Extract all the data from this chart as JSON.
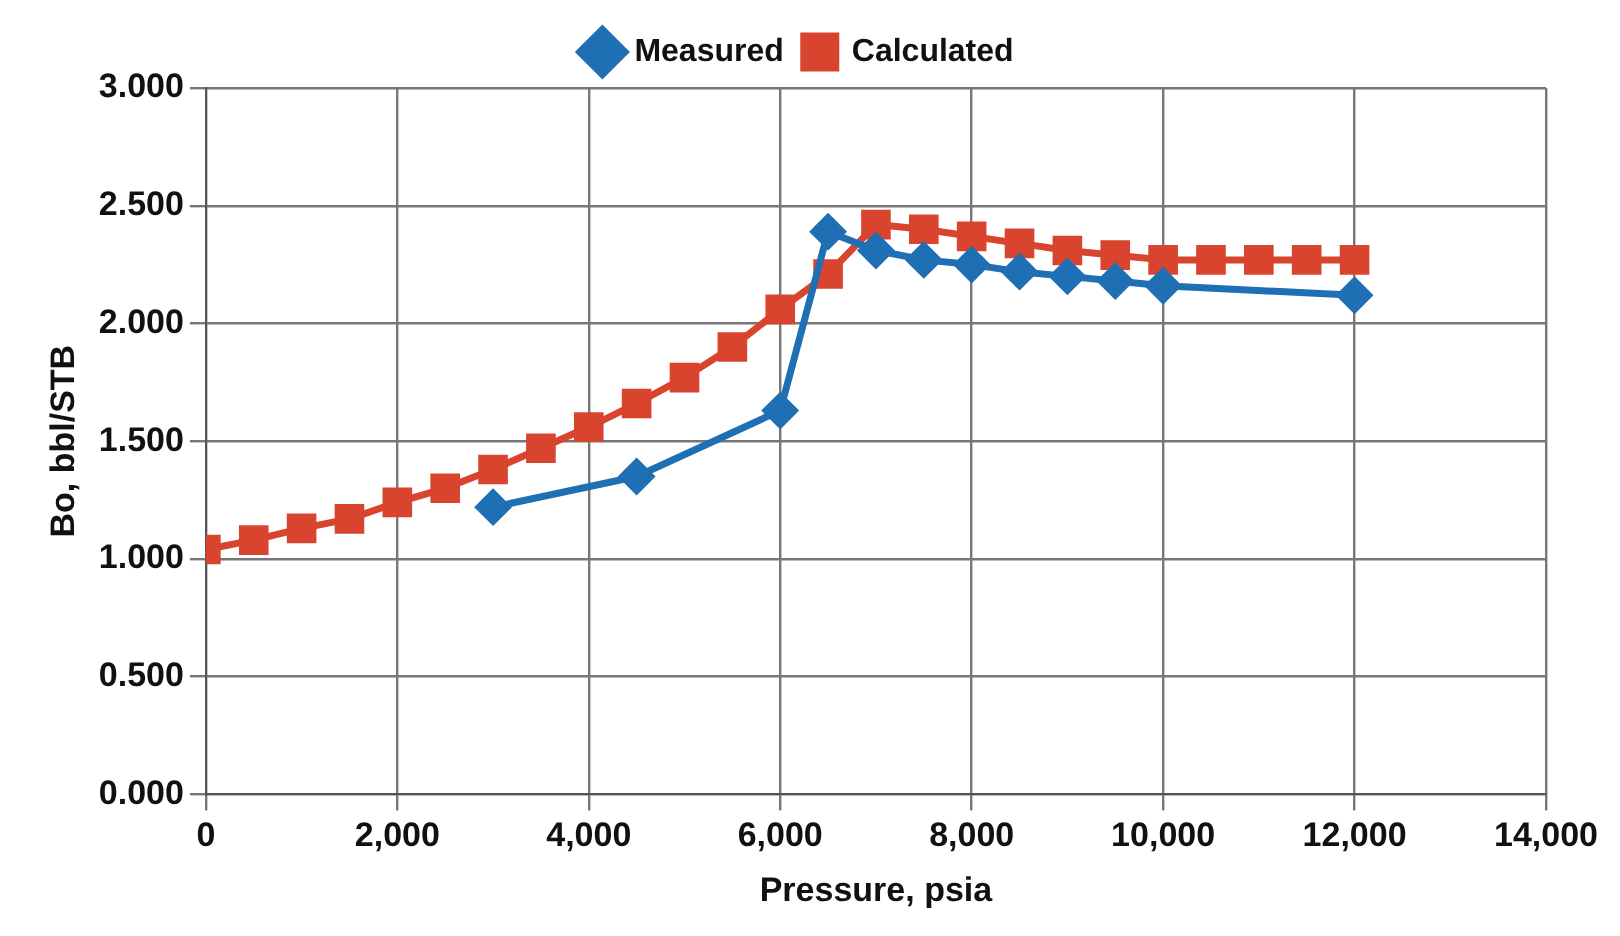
{
  "chart_data": {
    "type": "line",
    "xlabel": "Pressure, psia",
    "ylabel": "Bo, bbl/STB",
    "xlim": [
      0,
      14000
    ],
    "xticks": [
      0,
      {
        "value": 2000,
        "label": "2,000"
      },
      {
        "value": 4000,
        "label": "4,000"
      },
      {
        "value": 6000,
        "label": "6,000"
      },
      {
        "value": 8000,
        "label": "8,000"
      },
      {
        "value": 10000,
        "label": "10,000"
      },
      {
        "value": 12000,
        "label": "12,000"
      },
      {
        "value": 14000,
        "label": "14,000"
      }
    ],
    "ylim": [
      0,
      3
    ],
    "yticks": [
      {
        "value": 0,
        "label": "0.000"
      },
      {
        "value": 0.5,
        "label": "0.500"
      },
      {
        "value": 1,
        "label": "1.000"
      },
      {
        "value": 1.5,
        "label": "1.500"
      },
      {
        "value": 2,
        "label": "2.000"
      },
      {
        "value": 2.5,
        "label": "2.500"
      },
      {
        "value": 3,
        "label": "3.000"
      }
    ],
    "grid": true,
    "legend": "top",
    "line_style": "solid",
    "series": [
      {
        "name": "Measured",
        "color": "#1f6fb5",
        "marker": "diamond",
        "x": [
          3000,
          4500,
          6000,
          6500,
          7000,
          7500,
          8000,
          8500,
          9000,
          9500,
          10000,
          12000
        ],
        "values": [
          1.22,
          1.35,
          1.63,
          2.39,
          2.31,
          2.27,
          2.25,
          2.22,
          2.2,
          2.18,
          2.16,
          2.12
        ]
      },
      {
        "name": "Calculated",
        "color": "#d9442f",
        "marker": "square",
        "x": [
          0,
          500,
          1000,
          1500,
          2000,
          2500,
          3000,
          3500,
          4000,
          4500,
          5000,
          5500,
          6000,
          6500,
          7000,
          7500,
          8000,
          8500,
          9000,
          9500,
          10000,
          10500,
          11000,
          11500,
          12000
        ],
        "values": [
          1.04,
          1.08,
          1.13,
          1.17,
          1.24,
          1.3,
          1.38,
          1.47,
          1.56,
          1.66,
          1.77,
          1.9,
          2.06,
          2.21,
          2.42,
          2.4,
          2.37,
          2.34,
          2.31,
          2.29,
          2.27,
          2.27,
          2.27,
          2.27,
          2.27
        ]
      }
    ]
  }
}
